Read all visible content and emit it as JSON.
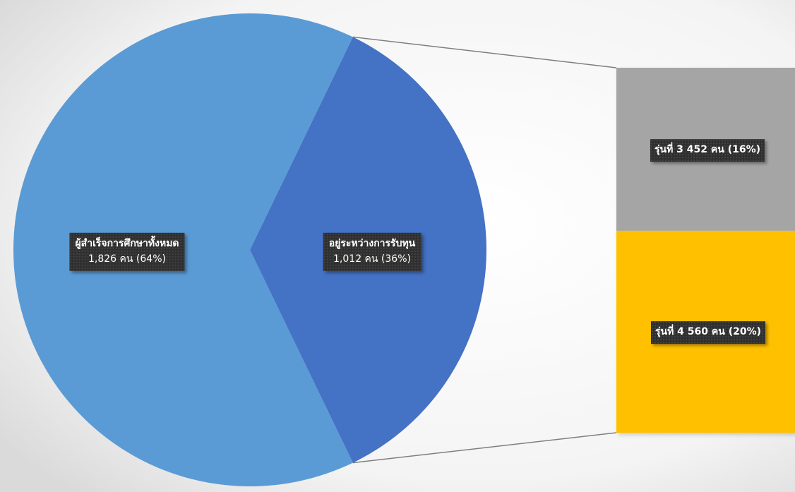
{
  "chart_data": {
    "type": "bar-of-pie",
    "pie": [
      {
        "name": "ผู้สำเร็จการศึกษาทั้งหมด",
        "value": 1826,
        "percent": 64,
        "value_label": "1,826 คน (64%)",
        "color": "#5b9bd5"
      },
      {
        "name": "อยู่ระหว่างการรับทุน",
        "value": 1012,
        "percent": 36,
        "value_label": "1,012 คน (36%)",
        "color": "#4472c4"
      }
    ],
    "bar": [
      {
        "name": "รุ่นที่ 3",
        "value": 452,
        "percent": 16,
        "label": "รุ่นที่ 3 452 คน (16%)",
        "color": "#a5a5a5"
      },
      {
        "name": "รุ่นที่ 4",
        "value": 560,
        "percent": 20,
        "label": "รุ่นที่ 4 560 คน (20%)",
        "color": "#ffc000"
      }
    ],
    "legend": "none",
    "connector_color": "#7f7f7f"
  }
}
